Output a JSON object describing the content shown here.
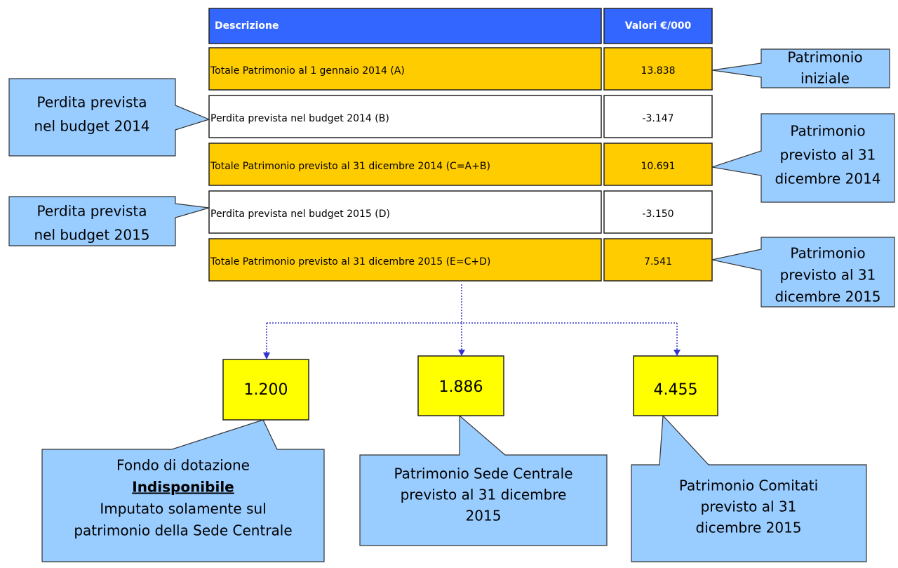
{
  "table": {
    "header": [
      "Descrizione",
      "Valori €/000"
    ],
    "rows": [
      {
        "description": "Totale Patrimonio al 1 gennaio 2014 (A)",
        "value": "13.838"
      },
      {
        "description": "Perdita prevista nel budget 2014 (B)",
        "value": "-3.147"
      },
      {
        "description": "Totale Patrimonio previsto al 31 dicembre 2014 (C=A+B)",
        "value": "10.691"
      },
      {
        "description": "Perdita prevista nel budget 2015 (D)",
        "value": "-3.150"
      },
      {
        "description": "Totale Patrimonio previsto al 31 dicembre 2015 (E=C+D)",
        "value": "7.541"
      }
    ]
  },
  "left_callouts": [
    {
      "lines": [
        "Perdita prevista",
        "nel budget 2014"
      ]
    },
    {
      "lines": [
        "Perdita prevista",
        "nel budget 2015"
      ]
    }
  ],
  "right_callouts": [
    {
      "lines": [
        "Patrimonio",
        "iniziale"
      ]
    },
    {
      "lines": [
        "Patrimonio",
        "previsto al 31",
        "dicembre 2014"
      ]
    },
    {
      "lines": [
        "Patrimonio",
        "previsto al 31",
        "dicembre 2015"
      ]
    }
  ],
  "boxes": [
    {
      "value": "1.200",
      "callout": {
        "lines": [
          "Fondo di dotazione",
          "Indisponibile",
          "Imputato solamente sul",
          "patrimonio della Sede Centrale"
        ]
      }
    },
    {
      "value": "1.886",
      "callout": {
        "lines": [
          "Patrimonio Sede Centrale",
          "previsto al 31 dicembre",
          "2015"
        ]
      }
    },
    {
      "value": "4.455",
      "callout": {
        "lines": [
          "Patrimonio Comitati",
          "previsto al 31",
          "dicembre 2015"
        ]
      }
    }
  ]
}
